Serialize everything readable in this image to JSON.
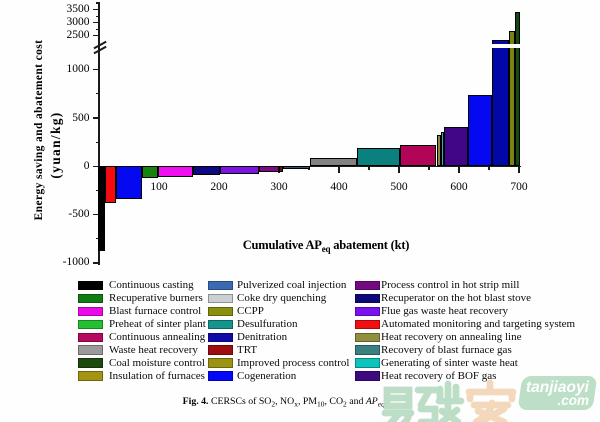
{
  "chart_data": {
    "type": "bar",
    "variant": "marginal-abatement-cost-curve",
    "xlabel": {
      "pre": "Cumulative AP",
      "sub": "eq",
      "post": " abatement (kt)"
    },
    "ylabel_line1": "Energy saving and abatement cost",
    "ylabel_line2": "(yuan/kg)",
    "x_ticks": [
      100,
      200,
      300,
      400,
      500,
      600,
      700
    ],
    "y_ticks_lower": [
      -1000,
      -500,
      0,
      500,
      1000
    ],
    "y_ticks_upper": [
      2500,
      3000,
      3500
    ],
    "y_axis_break": [
      1200,
      2300
    ],
    "grid": false,
    "legend_position": "below",
    "bars": [
      {
        "name": "Continuous casting",
        "color": "#000000",
        "x0": -2.5,
        "x1": 10,
        "value": -880
      },
      {
        "name": "Automated monitoring and targeting system",
        "color": "#f50a10",
        "x0": 10,
        "x1": 29,
        "value": -375
      },
      {
        "name": "Cogeneration",
        "color": "#0509f2",
        "x0": 29,
        "x1": 71,
        "value": -340
      },
      {
        "name": "Recuperative burners",
        "color": "#15830d",
        "x0": 71,
        "x1": 98,
        "value": -120
      },
      {
        "name": "Blast furnace control",
        "color": "#ee10ee",
        "x0": 98,
        "x1": 157,
        "value": -113
      },
      {
        "name": "Recuperator on the hot blast stove",
        "color": "#0e0882",
        "x0": 157,
        "x1": 201.5,
        "value": -89
      },
      {
        "name": "Flue gas waste heat recovery",
        "color": "#7d12e6",
        "x0": 201.5,
        "x1": 266,
        "value": -82
      },
      {
        "name": "Process control in hot strip mill",
        "color": "#7e0a85",
        "x0": 266,
        "x1": 299.5,
        "value": -57
      },
      {
        "name": "TRT",
        "color": "#701010",
        "x0": 299.5,
        "x1": 306.5,
        "value": -63
      },
      {
        "name": "Recovery of blast furnace gas",
        "color": "#365464",
        "x0": 306.5,
        "x1": 351.5,
        "value": -24
      },
      {
        "name": "Waste heat recovery",
        "color": "#828284",
        "x0": 351.5,
        "x1": 430,
        "value": 90
      },
      {
        "name": "Desulfuration",
        "color": "#0a817e",
        "x0": 430,
        "x1": 501.5,
        "value": 185
      },
      {
        "name": "Continuous annealing",
        "color": "#b20558",
        "x0": 501.5,
        "x1": 562.5,
        "value": 222
      },
      {
        "name": "Heat recovery on annealing line",
        "color": "#8a8a3e",
        "x0": 562.5,
        "x1": 570.5,
        "value": 325
      },
      {
        "name": "Generating of sinter waste heat",
        "color": "#2fb0b4",
        "x0": 570.5,
        "x1": 575.5,
        "value": 360
      },
      {
        "name": "Heat recovery of BOF gas",
        "color": "#400687",
        "x0": 575.5,
        "x1": 615.5,
        "value": 407
      },
      {
        "name": "Pulverized coal injection",
        "color": "#0509f2",
        "x0": 615.5,
        "x1": 655,
        "value": 733
      },
      {
        "name": "Denitration",
        "color": "#0208a8",
        "x0": 655,
        "x1": 684,
        "value": 2355
      },
      {
        "name": "CCPP",
        "color": "#79830f",
        "x0": 684,
        "x1": 694,
        "value": 2683
      },
      {
        "name": "Coal moisture control",
        "color": "#124a12",
        "x0": 694,
        "x1": 701,
        "value": 3405
      }
    ]
  },
  "legend": {
    "columns": [
      [
        {
          "label": "Continuous casting",
          "color": "#000000"
        },
        {
          "label": "Recuperative burners",
          "color": "#0f7d14"
        },
        {
          "label": "Blast furnace control",
          "color": "#ea0ce6"
        },
        {
          "label": "Preheat of sinter plant",
          "color": "#22c032"
        },
        {
          "label": "Continuous annealing",
          "color": "#b50a5e"
        },
        {
          "label": "Waste heat recovery",
          "color": "#9a9a9a"
        },
        {
          "label": "Coal moisture control",
          "color": "#1c4a0e"
        },
        {
          "label": "Insulation of furnaces",
          "color": "#a49312"
        }
      ],
      [
        {
          "label": "Pulverized coal injection",
          "color": "#3a6ab2"
        },
        {
          "label": "Coke dry quenching",
          "color": "#ccd0d4"
        },
        {
          "label": "CCPP",
          "color": "#8a8f0e"
        },
        {
          "label": "Desulfuration",
          "color": "#14948c"
        },
        {
          "label": "Denitration",
          "color": "#100ca8"
        },
        {
          "label": "TRT",
          "color": "#9c0e10"
        },
        {
          "label": "Improved process control",
          "color": "#9a9412"
        },
        {
          "label": "Cogeneration",
          "color": "#0408f8"
        }
      ],
      [
        {
          "label": "Process control in hot strip mill",
          "color": "#750a80"
        },
        {
          "label": "Recuperator on the hot blast stove",
          "color": "#10087a"
        },
        {
          "label": "Flue gas waste heat recovery",
          "color": "#7a12f0"
        },
        {
          "label": "Automated monitoring and targeting system",
          "color": "#f20e12"
        },
        {
          "label": "Heat recovery on annealing line",
          "color": "#8f8f3f"
        },
        {
          "label": "Recovery of blast furnace gas",
          "color": "#3a8080"
        },
        {
          "label": "Generating of sinter waste heat",
          "color": "#0cc4bc"
        },
        {
          "label": "Heat recovery of BOF gas",
          "color": "#3f0a80"
        }
      ]
    ]
  },
  "caption": {
    "prefix": "Fig. 4.",
    "segments": [
      {
        "t": " CERSCs of SO"
      },
      {
        "t": "2",
        "sub": true
      },
      {
        "t": ", NO"
      },
      {
        "t": "x",
        "sub": true
      },
      {
        "t": ", PM"
      },
      {
        "t": "10",
        "sub": true
      },
      {
        "t": ", CO"
      },
      {
        "t": "2",
        "sub": true
      },
      {
        "t": " and "
      },
      {
        "t": "AP",
        "it": true
      },
      {
        "t": "eq",
        "sub": true,
        "it": true
      },
      {
        "t": "."
      }
    ]
  },
  "watermark": {
    "characters": "易碳家",
    "char_colors": [
      "#a4d2ae",
      "#a4d2ae",
      "#f4cda8"
    ],
    "site_name": "tanjiaoyi",
    "site_tld": ".com",
    "box_color": "#b7dcc2"
  }
}
